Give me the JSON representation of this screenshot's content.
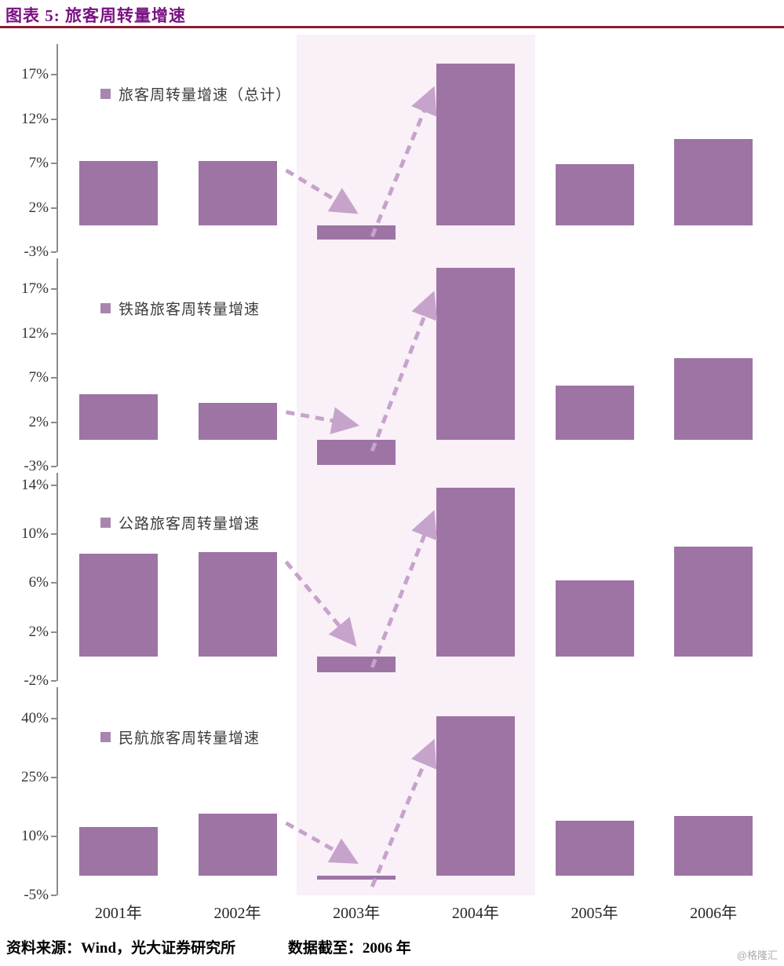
{
  "header": {
    "title": "图表 5: 旅客周转量增速"
  },
  "footer": {
    "source": "资料来源：Wind，光大证券研究所",
    "cutoff": "数据截至：2006 年",
    "watermark": "@格隆汇"
  },
  "colors": {
    "bar": "#9D74A4",
    "legend_marker": "#A887AF",
    "band": "#F9F0F8",
    "arrow": "#C6A3CB",
    "title": "#7A1283",
    "rule": "#8A1E30",
    "axis": "#8C8C8C"
  },
  "chart_data": [
    {
      "type": "bar",
      "legend": "旅客周转量增速（总计）",
      "categories": [
        "2001年",
        "2002年",
        "2003年",
        "2004年",
        "2005年",
        "2006年"
      ],
      "values": [
        7.3,
        7.3,
        -1.6,
        18.3,
        6.9,
        9.8
      ],
      "yticks": [
        17,
        12,
        7,
        2,
        -3
      ],
      "ylim": [
        -3,
        20.5
      ],
      "highlight_categories": [
        "2003年",
        "2004年"
      ],
      "annotations": [
        "dashed-arrow-down-to-2003",
        "dashed-arrow-up-to-2004"
      ]
    },
    {
      "type": "bar",
      "legend": "铁路旅客周转量增速",
      "categories": [
        "2001年",
        "2002年",
        "2003年",
        "2004年",
        "2005年",
        "2006年"
      ],
      "values": [
        5.2,
        4.2,
        -2.8,
        19.4,
        6.1,
        9.2
      ],
      "yticks": [
        17,
        12,
        7,
        2,
        -3
      ],
      "ylim": [
        -3,
        20.5
      ],
      "highlight_categories": [
        "2003年",
        "2004年"
      ],
      "annotations": [
        "dashed-arrow-down-to-2003",
        "dashed-arrow-up-to-2004"
      ]
    },
    {
      "type": "bar",
      "legend": "公路旅客周转量增速",
      "categories": [
        "2001年",
        "2002年",
        "2003年",
        "2004年",
        "2005年",
        "2006年"
      ],
      "values": [
        8.4,
        8.5,
        -1.3,
        13.8,
        6.2,
        9.0
      ],
      "yticks": [
        14,
        10,
        6,
        2,
        -2
      ],
      "ylim": [
        -2,
        15
      ],
      "highlight_categories": [
        "2003年",
        "2004年"
      ],
      "annotations": [
        "dashed-arrow-down-to-2003",
        "dashed-arrow-up-to-2004"
      ]
    },
    {
      "type": "bar",
      "legend": "民航旅客周转量增速",
      "categories": [
        "2001年",
        "2002年",
        "2003年",
        "2004年",
        "2005年",
        "2006年"
      ],
      "values": [
        12.5,
        15.8,
        -1.0,
        40.6,
        14.0,
        15.2
      ],
      "yticks": [
        40,
        25,
        10,
        -5
      ],
      "ylim": [
        -5,
        48
      ],
      "highlight_categories": [
        "2003年",
        "2004年"
      ],
      "annotations": [
        "dashed-arrow-down-to-2003",
        "dashed-arrow-up-to-2004"
      ]
    }
  ]
}
